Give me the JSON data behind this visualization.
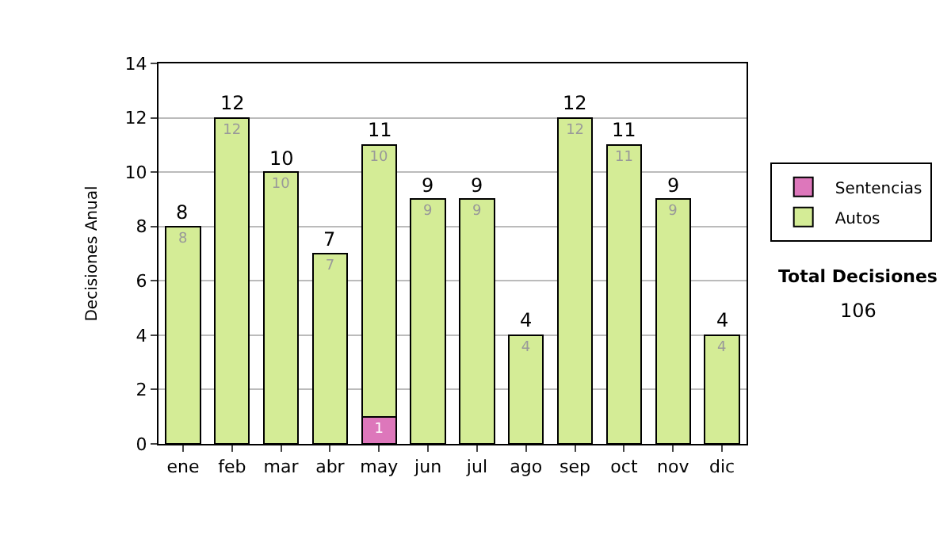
{
  "chart_data": {
    "type": "bar",
    "stacked": true,
    "ylabel": "Decisiones Anual",
    "categories": [
      "ene",
      "feb",
      "mar",
      "abr",
      "may",
      "jun",
      "jul",
      "ago",
      "sep",
      "oct",
      "nov",
      "dic"
    ],
    "series": [
      {
        "name": "Sentencias",
        "color": "#dd77bb",
        "values": [
          0,
          0,
          0,
          0,
          1,
          0,
          0,
          0,
          0,
          0,
          0,
          0
        ],
        "value_labels": [
          null,
          null,
          null,
          null,
          "1",
          null,
          null,
          null,
          null,
          null,
          null,
          null
        ]
      },
      {
        "name": "Autos",
        "color": "#d4ec96",
        "values": [
          8,
          12,
          10,
          7,
          10,
          9,
          9,
          4,
          12,
          11,
          9,
          4
        ],
        "value_labels": [
          "8",
          "12",
          "10",
          "7",
          "10",
          "9",
          "9",
          "4",
          "12",
          "11",
          "9",
          "4"
        ]
      }
    ],
    "totals": [
      "8",
      "12",
      "10",
      "7",
      "11",
      "9",
      "9",
      "4",
      "12",
      "11",
      "9",
      "4"
    ],
    "ylim": [
      0,
      14
    ],
    "yticks": [
      0,
      2,
      4,
      6,
      8,
      10,
      12,
      14
    ],
    "grid": "y",
    "legend": "right",
    "annotations": [
      "Total Decisiones",
      "106"
    ]
  }
}
